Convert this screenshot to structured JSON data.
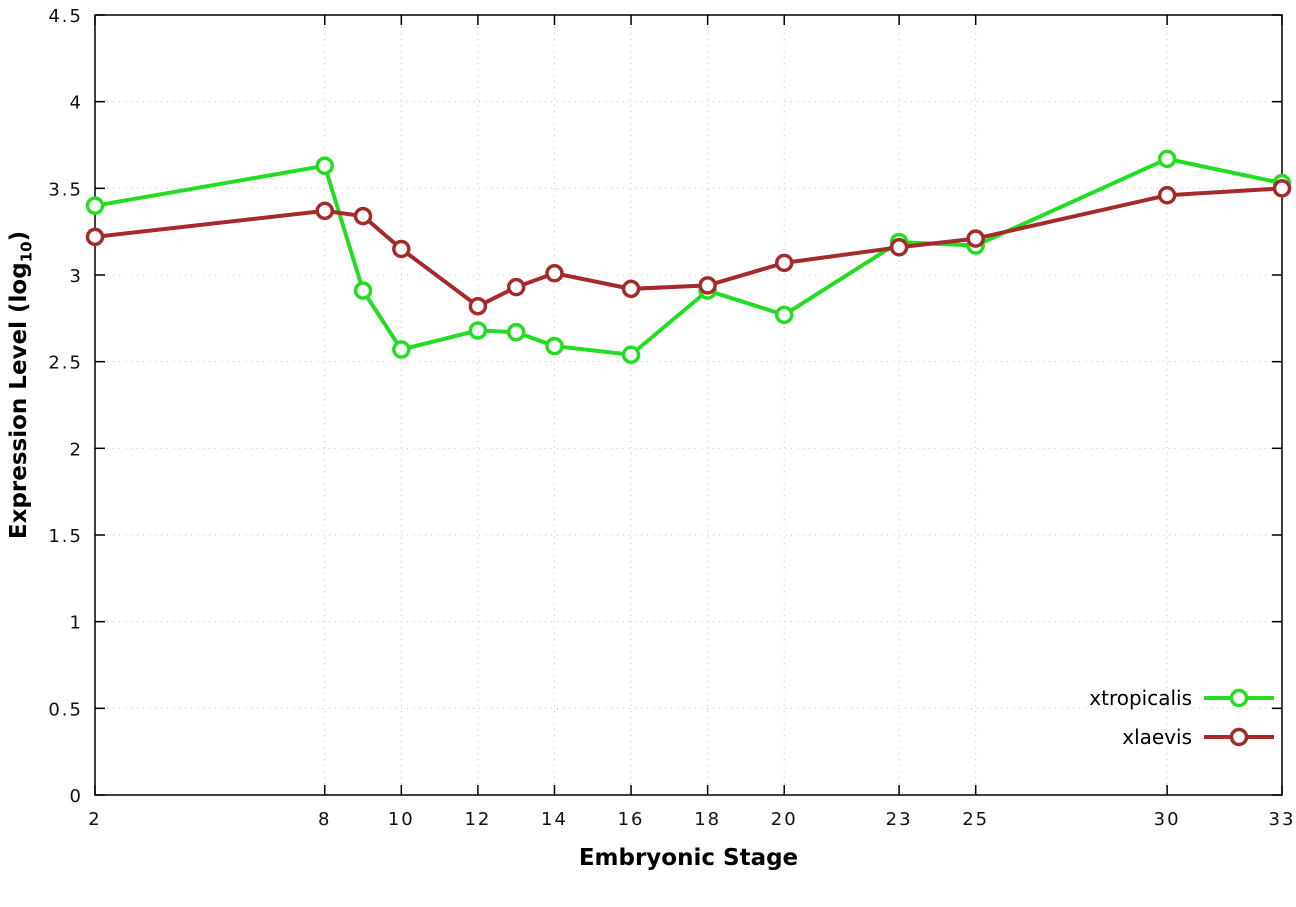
{
  "chart_data": {
    "type": "line",
    "title": "",
    "xlabel": "Embryonic Stage",
    "ylabel": "Expression Level (log10)",
    "ylabel_parts": {
      "main": "Expression Level (log",
      "sub": "10",
      "close": ")"
    },
    "xlim": [
      2,
      33
    ],
    "ylim": [
      0,
      4.5
    ],
    "xticks": [
      2,
      8,
      10,
      12,
      14,
      16,
      18,
      20,
      23,
      25,
      30,
      33
    ],
    "yticks": [
      0,
      0.5,
      1,
      1.5,
      2,
      2.5,
      3,
      3.5,
      4,
      4.5
    ],
    "grid": true,
    "legend_position": "bottom-right",
    "x": [
      2,
      8,
      9,
      10,
      12,
      13,
      14,
      16,
      18,
      20,
      23,
      25,
      30,
      33
    ],
    "series": [
      {
        "name": "xtropicalis",
        "color": "#22dd22",
        "values": [
          3.4,
          3.63,
          2.91,
          2.57,
          2.68,
          2.67,
          2.59,
          2.54,
          2.91,
          2.77,
          3.19,
          3.17,
          3.67,
          3.53
        ]
      },
      {
        "name": "xlaevis",
        "color": "#a52a2a",
        "values": [
          3.22,
          3.37,
          3.34,
          3.15,
          2.82,
          2.93,
          3.01,
          2.92,
          2.94,
          3.07,
          3.16,
          3.21,
          3.46,
          3.5
        ]
      }
    ]
  }
}
